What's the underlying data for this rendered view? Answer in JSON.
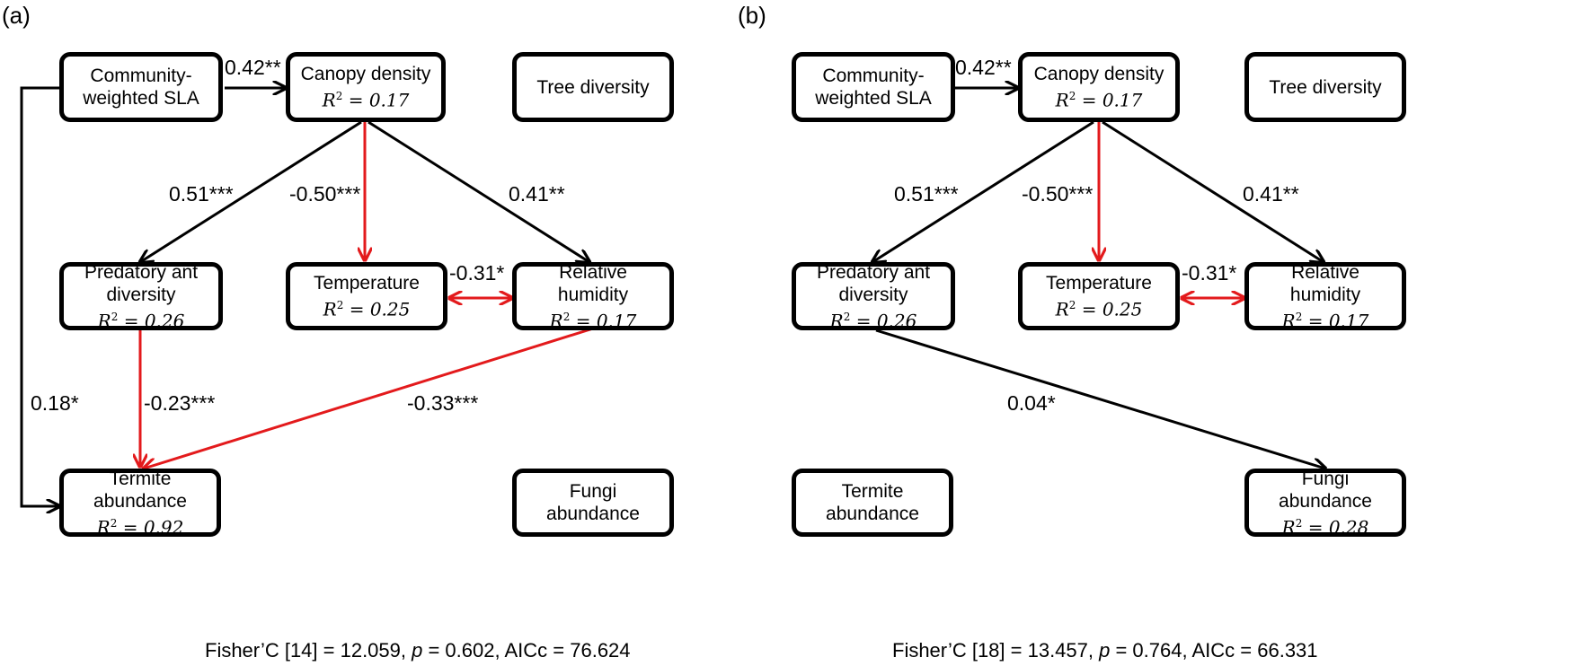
{
  "colors": {
    "positive": "#000000",
    "negative": "#e31a1c"
  },
  "panels": [
    {
      "label": "(a)",
      "nodes": {
        "sla": {
          "line1": "Community-",
          "line2": "weighted SLA"
        },
        "canopy": {
          "label": "Canopy density",
          "r2": "0.17"
        },
        "tree": {
          "label": "Tree diversity"
        },
        "ant": {
          "line1": "Predatory ant",
          "line2": "diversity",
          "r2": "0.26"
        },
        "temp": {
          "label": "Temperature",
          "r2": "0.25"
        },
        "rh": {
          "line1": "Relative",
          "line2": "humidity",
          "r2": "0.17"
        },
        "termite": {
          "line1": "Termite",
          "line2": "abundance",
          "r2": "0.92"
        },
        "fungi": {
          "line1": "Fungi",
          "line2": "abundance"
        }
      },
      "paths": [
        {
          "from": "sla",
          "to": "canopy",
          "coef": "0.42**",
          "sign": "positive"
        },
        {
          "from": "canopy",
          "to": "ant",
          "coef": "0.51***",
          "sign": "positive"
        },
        {
          "from": "canopy",
          "to": "temp",
          "coef": "-0.50***",
          "sign": "negative"
        },
        {
          "from": "canopy",
          "to": "rh",
          "coef": "0.41**",
          "sign": "positive"
        },
        {
          "from": "temp",
          "to": "rh",
          "coef": "-0.31*",
          "sign": "negative",
          "bidirectional": true
        },
        {
          "from": "sla",
          "to": "termite",
          "coef": "0.18*",
          "sign": "positive"
        },
        {
          "from": "ant",
          "to": "termite",
          "coef": "-0.23***",
          "sign": "negative"
        },
        {
          "from": "rh",
          "to": "termite",
          "coef": "-0.33***",
          "sign": "negative"
        }
      ],
      "stats": {
        "fisher": "Fisher’C [14] = 12.059, ",
        "p_symbol": "p",
        "rest": " = 0.602, AICc = 76.624"
      }
    },
    {
      "label": "(b)",
      "nodes": {
        "sla": {
          "line1": "Community-",
          "line2": "weighted SLA"
        },
        "canopy": {
          "label": "Canopy density",
          "r2": "0.17"
        },
        "tree": {
          "label": "Tree diversity"
        },
        "ant": {
          "line1": "Predatory ant",
          "line2": "diversity",
          "r2": "0.26"
        },
        "temp": {
          "label": "Temperature",
          "r2": "0.25"
        },
        "rh": {
          "line1": "Relative",
          "line2": "humidity",
          "r2": "0.17"
        },
        "termite": {
          "line1": "Termite",
          "line2": "abundance"
        },
        "fungi": {
          "line1": "Fungi",
          "line2": "abundance",
          "r2": "0.28"
        }
      },
      "paths": [
        {
          "from": "sla",
          "to": "canopy",
          "coef": "0.42**",
          "sign": "positive"
        },
        {
          "from": "canopy",
          "to": "ant",
          "coef": "0.51***",
          "sign": "positive"
        },
        {
          "from": "canopy",
          "to": "temp",
          "coef": "-0.50***",
          "sign": "negative"
        },
        {
          "from": "canopy",
          "to": "rh",
          "coef": "0.41**",
          "sign": "positive"
        },
        {
          "from": "temp",
          "to": "rh",
          "coef": "-0.31*",
          "sign": "negative",
          "bidirectional": true
        },
        {
          "from": "ant",
          "to": "fungi",
          "coef": "0.04*",
          "sign": "positive"
        }
      ],
      "stats": {
        "fisher": "Fisher’C [18] = 13.457, ",
        "p_symbol": "p",
        "rest": " = 0.764, AICc = 66.331"
      }
    }
  ]
}
